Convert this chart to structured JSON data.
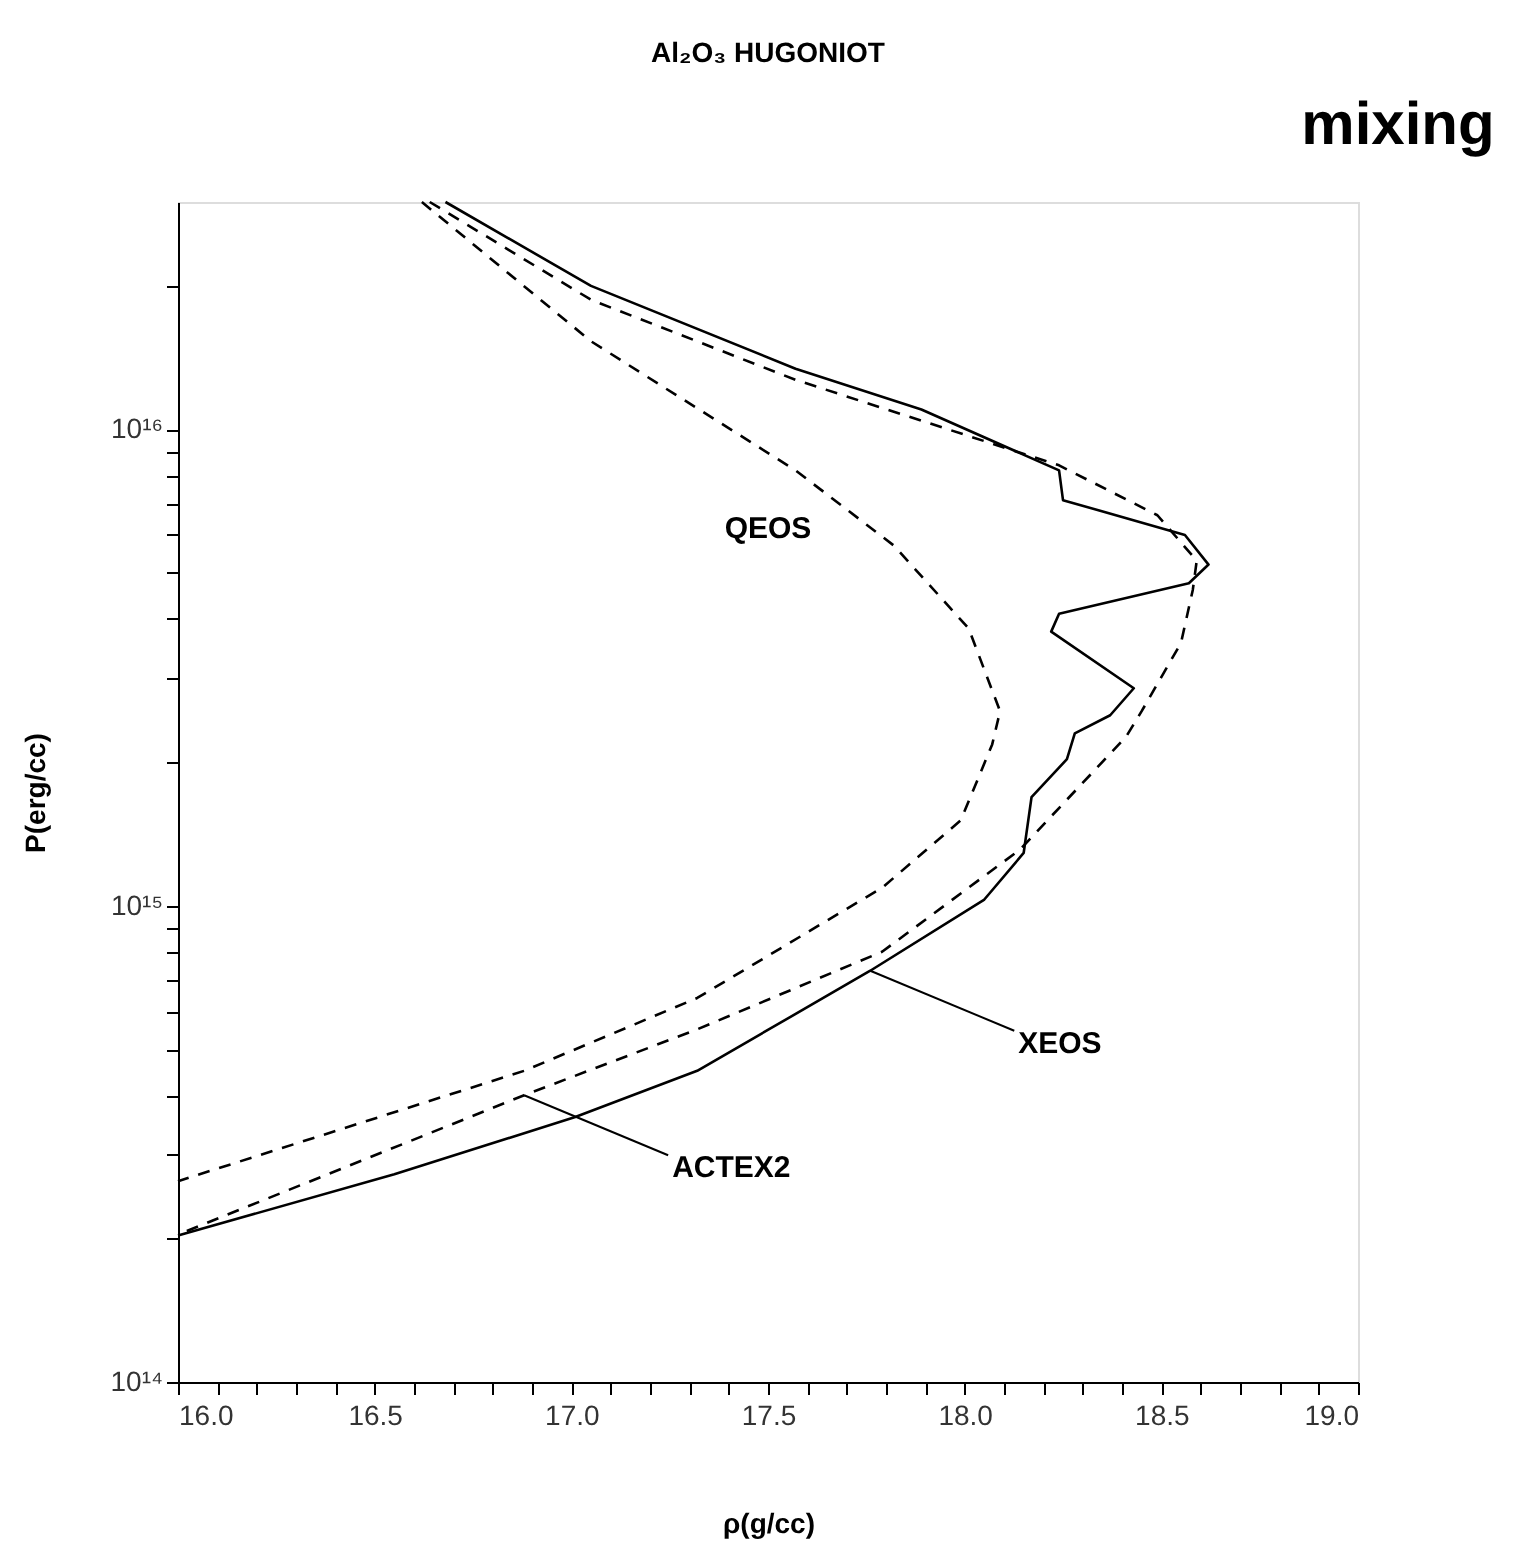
{
  "chart_data": {
    "type": "line",
    "title": "Al₂O₃ HUGONIOT",
    "xlabel": "ρ(g/cc)",
    "ylabel": "P(erg/cc)",
    "log": "y",
    "grid": false,
    "marker": "none",
    "xlim": [
      16,
      19
    ],
    "ylim": [
      100000000000000.0,
      3e+16
    ],
    "xticks": [
      {
        "value": 16.0,
        "label": "16.0"
      },
      {
        "value": 16.1,
        "label": null
      },
      {
        "value": 16.2,
        "label": null
      },
      {
        "value": 16.3,
        "label": null
      },
      {
        "value": 16.4,
        "label": null
      },
      {
        "value": 16.5,
        "label": "16.5"
      },
      {
        "value": 16.6,
        "label": null
      },
      {
        "value": 16.7,
        "label": null
      },
      {
        "value": 16.8,
        "label": null
      },
      {
        "value": 16.9,
        "label": null
      },
      {
        "value": 17.0,
        "label": "17.0"
      },
      {
        "value": 17.1,
        "label": null
      },
      {
        "value": 17.2,
        "label": null
      },
      {
        "value": 17.3,
        "label": null
      },
      {
        "value": 17.4,
        "label": null
      },
      {
        "value": 17.5,
        "label": "17.5"
      },
      {
        "value": 17.6,
        "label": null
      },
      {
        "value": 17.7,
        "label": null
      },
      {
        "value": 17.8,
        "label": null
      },
      {
        "value": 17.9,
        "label": null
      },
      {
        "value": 18.0,
        "label": "18.0"
      },
      {
        "value": 18.1,
        "label": null
      },
      {
        "value": 18.2,
        "label": null
      },
      {
        "value": 18.3,
        "label": null
      },
      {
        "value": 18.4,
        "label": null
      },
      {
        "value": 18.5,
        "label": "18.5"
      },
      {
        "value": 18.6,
        "label": null
      },
      {
        "value": 18.7,
        "label": null
      },
      {
        "value": 18.8,
        "label": null
      },
      {
        "value": 18.9,
        "label": null
      },
      {
        "value": 19.0,
        "label": "19.0"
      }
    ],
    "yticks": [
      {
        "value": 100000000000000.0,
        "label": "10¹⁴"
      },
      {
        "value": 200000000000000.0,
        "label": null
      },
      {
        "value": 300000000000000.0,
        "label": null
      },
      {
        "value": 400000000000000.0,
        "label": null
      },
      {
        "value": 500000000000000.0,
        "label": null
      },
      {
        "value": 600000000000000.0,
        "label": null
      },
      {
        "value": 700000000000000.0,
        "label": null
      },
      {
        "value": 800000000000000.0,
        "label": null
      },
      {
        "value": 900000000000000.0,
        "label": null
      },
      {
        "value": 1000000000000000.0,
        "label": "10¹⁵"
      },
      {
        "value": 2000000000000000.0,
        "label": null
      },
      {
        "value": 3000000000000000.0,
        "label": null
      },
      {
        "value": 4000000000000000.0,
        "label": null
      },
      {
        "value": 5000000000000000.0,
        "label": null
      },
      {
        "value": 6000000000000000.0,
        "label": null
      },
      {
        "value": 7000000000000000.0,
        "label": null
      },
      {
        "value": 8000000000000000.0,
        "label": null
      },
      {
        "value": 9000000000000000.0,
        "label": null
      },
      {
        "value": 1e+16,
        "label": "10¹⁶"
      },
      {
        "value": 2e+16,
        "label": null
      }
    ],
    "series": [
      {
        "color": "#000000",
        "line_style": "solid",
        "x": [
          16.68,
          17.05,
          17.57,
          17.89,
          18.24,
          18.25,
          18.56,
          18.62,
          18.57,
          18.24,
          18.22,
          18.43,
          18.37,
          18.28,
          18.26,
          18.17,
          18.15,
          18.05,
          17.76,
          17.32,
          17.01,
          16.55,
          16.0
        ],
        "values": [
          3e+16,
          2e+16,
          1.34e+16,
          1.1e+16,
          8200000000000000.0,
          7100000000000000.0,
          6000000000000000.0,
          5200000000000000.0,
          4750000000000000.0,
          4100000000000000.0,
          3760000000000000.0,
          2860000000000000.0,
          2510000000000000.0,
          2300000000000000.0,
          2030000000000000.0,
          1690000000000000.0,
          1290000000000000.0,
          1030000000000000.0,
          730000000000000.0,
          450000000000000.0,
          360000000000000.0,
          273000000000000.0,
          203000000000000.0
        ]
      },
      {
        "color": "#000000",
        "line_style": "dashed",
        "x": [
          16.64,
          17.05,
          17.57,
          18.24,
          18.49,
          18.59,
          18.58,
          18.55,
          18.45,
          18.41,
          18.14,
          17.79,
          17.32,
          16.88,
          16.0
        ],
        "values": [
          3e+16,
          1.87e+16,
          1.27e+16,
          8400000000000000.0,
          6600000000000000.0,
          5300000000000000.0,
          4600000000000000.0,
          3560000000000000.0,
          2560000000000000.0,
          2260000000000000.0,
          1310000000000000.0,
          800000000000000.0,
          550000000000000.0,
          400000000000000.0,
          204000000000000.0
        ]
      },
      {
        "color": "#000000",
        "line_style": "dashed",
        "x": [
          16.62,
          17.05,
          17.57,
          17.82,
          18.01,
          18.09,
          18.07,
          17.99,
          17.79,
          17.32,
          16.88,
          16.0
        ],
        "values": [
          3e+16,
          1.53e+16,
          8200000000000000.0,
          5700000000000000.0,
          3820000000000000.0,
          2560000000000000.0,
          2180000000000000.0,
          1510000000000000.0,
          1090000000000000.0,
          640000000000000.0,
          450000000000000.0,
          264000000000000.0
        ]
      }
    ],
    "annotations": [
      "QEOS",
      "mixing",
      {
        "text": "XEOS",
        "x": 17.76,
        "y": 730000000000000.0
      },
      {
        "text": "ACTEX2",
        "x": 16.88,
        "y": 400000000000000.0
      }
    ]
  }
}
